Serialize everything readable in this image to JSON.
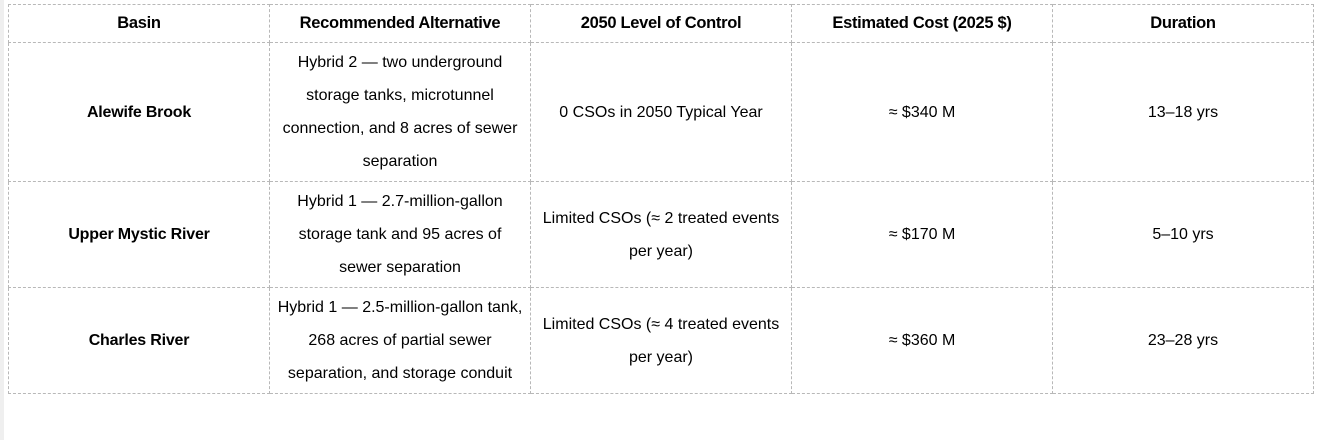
{
  "style": {
    "background": "#ffffff",
    "border_color": "#b8b8b8",
    "text_color": "#000000",
    "page_edge_color": "#efefef"
  },
  "table": {
    "columns": [
      "Basin",
      "Recommended Alternative",
      "2050 Level of Control",
      "Estimated Cost (2025 $)",
      "Duration"
    ],
    "rows": [
      {
        "basin": "Alewife Brook",
        "alternative": "Hybrid 2 — two underground storage tanks, microtunnel connection, and 8 acres of sewer separation",
        "control": "0 CSOs in 2050 Typical Year",
        "cost": "≈ $340 M",
        "duration": "13–18 yrs"
      },
      {
        "basin": "Upper Mystic River",
        "alternative": "Hybrid 1 — 2.7-million-gallon storage tank and 95 acres of sewer separation",
        "control": "Limited CSOs (≈ 2 treated events per year)",
        "cost": "≈ $170 M",
        "duration": "5–10 yrs"
      },
      {
        "basin": "Charles River",
        "alternative": "Hybrid 1 — 2.5-million-gallon tank, 268 acres of partial sewer separation, and storage conduit",
        "control": "Limited CSOs (≈ 4 treated events per year)",
        "cost": "≈ $360 M",
        "duration": "23–28 yrs"
      }
    ]
  }
}
